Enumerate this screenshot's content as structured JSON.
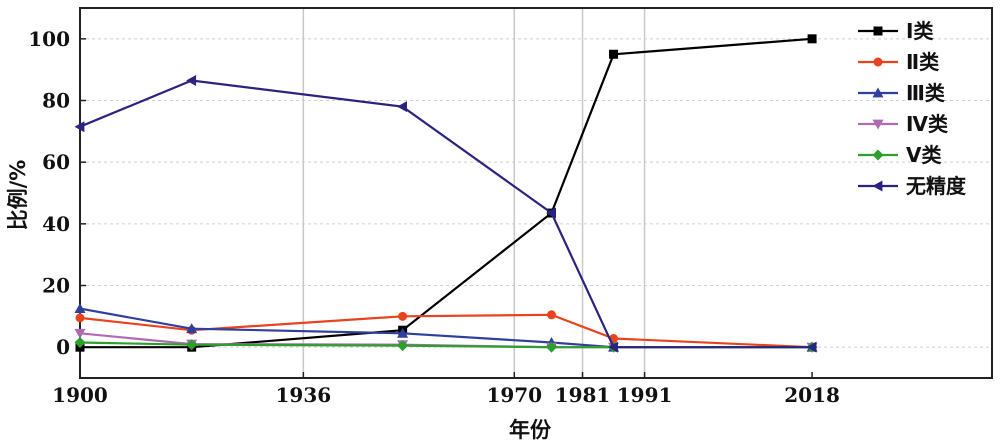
{
  "chart_data": {
    "type": "line",
    "xlabel": "年份",
    "ylabel": "比例/%",
    "xlim": [
      1900,
      2047
    ],
    "ylim": [
      -10,
      110
    ],
    "x_ticks": [
      1900,
      1936,
      1970,
      1981,
      1991,
      2018
    ],
    "x_tick_labels": [
      "1900",
      "1936",
      "1970",
      "1981",
      "1991",
      "2018"
    ],
    "y_ticks": [
      0,
      20,
      40,
      60,
      80,
      100
    ],
    "y_tick_labels": [
      "0",
      "20",
      "40",
      "60",
      "80",
      "100"
    ],
    "vertical_gridlines": [
      1936,
      1970,
      1981,
      1991
    ],
    "horizontal_gridlines": [
      0,
      20,
      40,
      60,
      80,
      100
    ],
    "legend_position": "top-right",
    "series": [
      {
        "name": "Ⅰ类",
        "color": "#000000",
        "marker": "square",
        "x": [
          1900,
          1918,
          1952,
          1976,
          1986,
          2018
        ],
        "y": [
          0,
          0,
          5.5,
          43.5,
          95,
          100
        ]
      },
      {
        "name": "Ⅱ类",
        "color": "#e8431e",
        "marker": "circle",
        "x": [
          1900,
          1918,
          1952,
          1976,
          1986,
          2018
        ],
        "y": [
          9.5,
          5.5,
          10,
          10.5,
          2.8,
          0
        ]
      },
      {
        "name": "Ⅲ类",
        "color": "#2e3f9e",
        "marker": "triangle-up",
        "x": [
          1900,
          1918,
          1952,
          1976,
          1986,
          2018
        ],
        "y": [
          12.5,
          6,
          4.5,
          1.5,
          0,
          0
        ]
      },
      {
        "name": "Ⅳ类",
        "color": "#b06ab3",
        "marker": "triangle-down",
        "x": [
          1900,
          1918,
          1952,
          1976,
          1986,
          2018
        ],
        "y": [
          4.5,
          1,
          0.8,
          0,
          0,
          0
        ]
      },
      {
        "name": "Ⅴ类",
        "color": "#2ca02c",
        "marker": "diamond",
        "x": [
          1900,
          1918,
          1952,
          1976,
          1986,
          2018
        ],
        "y": [
          1.5,
          0.8,
          0.5,
          0,
          0,
          0
        ]
      },
      {
        "name": "无精度",
        "color": "#2a2380",
        "marker": "triangle-left",
        "x": [
          1900,
          1918,
          1952,
          1976,
          1986,
          2018
        ],
        "y": [
          71.5,
          86.5,
          78,
          43.5,
          0,
          0
        ]
      }
    ]
  }
}
